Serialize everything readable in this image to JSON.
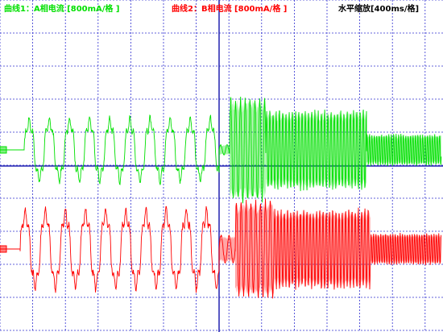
{
  "chart_data": {
    "type": "line",
    "title": "",
    "x_scale_label": "水平缩放[400ms/格]",
    "grid": true,
    "series": [
      {
        "name": "曲线1：A相电流 [800mA/格 ]",
        "color": "#00e000",
        "segments": [
          {
            "x": [
              0,
              30
            ],
            "amp": 0.0,
            "period": 25
          },
          {
            "x": [
              30,
              272
            ],
            "amp": 1.6,
            "period": 25,
            "distorted": true
          },
          {
            "x": [
              272,
              285
            ],
            "amp": 0.3,
            "period": 8
          },
          {
            "x": [
              285,
              330
            ],
            "amp": 3.0,
            "period": 6
          },
          {
            "x": [
              330,
              455
            ],
            "amp": 2.3,
            "period": 4
          },
          {
            "x": [
              455,
              548
            ],
            "amp": 0.9,
            "period": 3
          }
        ]
      },
      {
        "name": "曲线2：B相电流 [800mA/格 ]",
        "color": "#ff0000",
        "segments": [
          {
            "x": [
              0,
              25
            ],
            "amp": 0.0,
            "period": 25
          },
          {
            "x": [
              25,
              272
            ],
            "amp": 2.0,
            "period": 25,
            "distorted": true
          },
          {
            "x": [
              272,
              292
            ],
            "amp": 0.8,
            "period": 10
          },
          {
            "x": [
              292,
              340
            ],
            "amp": 2.8,
            "period": 6
          },
          {
            "x": [
              340,
              460
            ],
            "amp": 2.3,
            "period": 4
          },
          {
            "x": [
              460,
              548
            ],
            "amp": 0.9,
            "period": 3
          }
        ]
      }
    ]
  },
  "colors": {
    "grid": "#3030d0",
    "cursor": "#2020b0",
    "background": "#ffffff",
    "scale_text": "#000000"
  }
}
